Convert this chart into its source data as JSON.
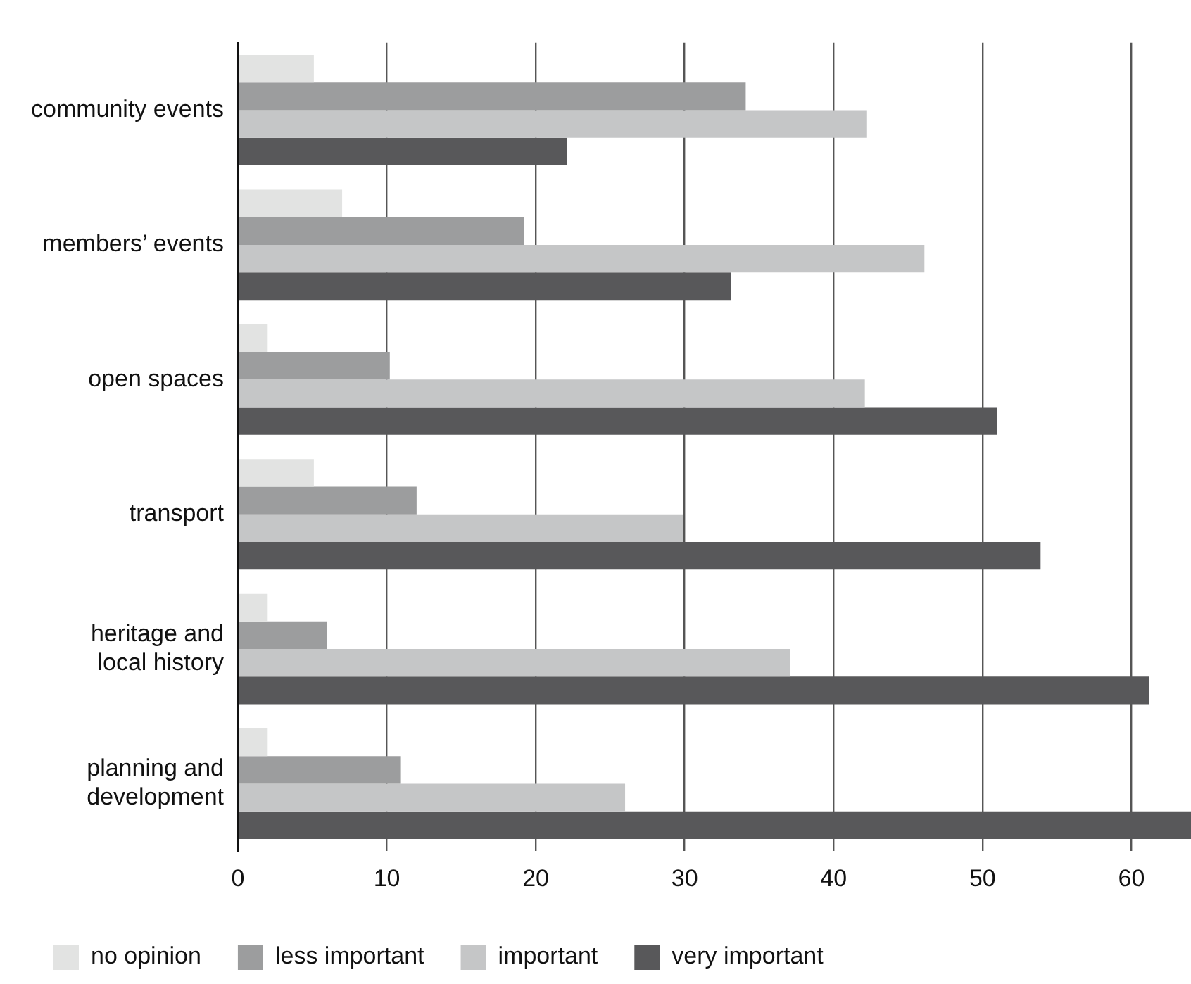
{
  "chart_data": {
    "type": "bar",
    "orientation": "horizontal",
    "categories": [
      "community events",
      "members’ events",
      "open spaces",
      "transport",
      "heritage and local history",
      "planning and development"
    ],
    "series": [
      {
        "name": "no opinion",
        "color": "#e2e3e2",
        "values": [
          5.1,
          7,
          2,
          5.1,
          2,
          2
        ]
      },
      {
        "name": "less important",
        "color": "#9c9d9e",
        "values": [
          34.1,
          19.2,
          10.2,
          12,
          6,
          10.9
        ]
      },
      {
        "name": "important",
        "color": "#c5c6c7",
        "values": [
          42.2,
          46.1,
          42.1,
          29.9,
          37.1,
          26
        ]
      },
      {
        "name": "very important",
        "color": "#58585a",
        "values": [
          22.1,
          33.1,
          51,
          53.9,
          61.2,
          64
        ]
      }
    ],
    "xlim": [
      0,
      64
    ],
    "xticks": [
      0,
      10,
      20,
      30,
      40,
      50,
      60
    ],
    "grid": "x",
    "legend": "bottom"
  }
}
